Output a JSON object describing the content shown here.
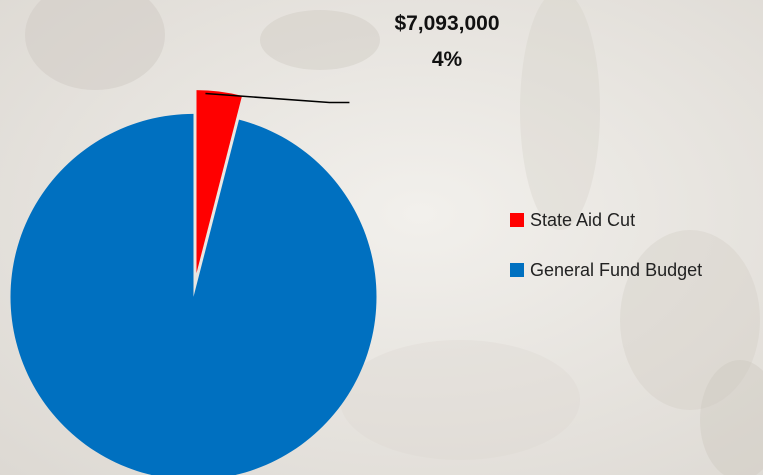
{
  "colors": {
    "state_aid_cut": "#ff0000",
    "general_fund_budget": "#0070c0"
  },
  "callout": {
    "value": "$7,093,000",
    "percent": "4%"
  },
  "legend": {
    "items": [
      {
        "label": "State Aid Cut",
        "color": "#ff0000"
      },
      {
        "label": "General Fund Budget",
        "color": "#0070c0"
      }
    ]
  },
  "chart_data": {
    "type": "pie",
    "title": "",
    "slices": [
      {
        "label": "State Aid Cut",
        "percent": 4,
        "value": 7093000,
        "color": "#ff0000",
        "exploded": true,
        "data_label": "$7,093,000\n4%"
      },
      {
        "label": "General Fund Budget",
        "percent": 96,
        "color": "#0070c0",
        "exploded": true
      }
    ],
    "start_angle_deg": 0,
    "direction": "clockwise",
    "legend_position": "right"
  }
}
